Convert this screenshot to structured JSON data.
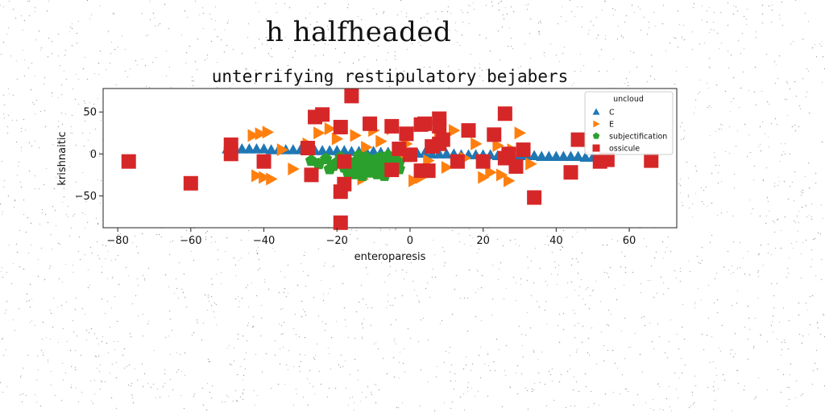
{
  "heading": "h halfheaded",
  "chart_data": {
    "type": "scatter",
    "title": "unterrifying restipulatory bejabers",
    "xlabel": "enteroparesis",
    "ylabel": "krishnaitic",
    "xlim": [
      -84,
      73
    ],
    "ylim": [
      -88,
      78
    ],
    "xticks": [
      -80,
      -60,
      -40,
      -20,
      0,
      20,
      40,
      60
    ],
    "yticks": [
      -50,
      0,
      50
    ],
    "grid": false,
    "legend": {
      "title": "uncloud",
      "placement": "upper right"
    },
    "series": [
      {
        "name": "C",
        "marker": "triangle-up",
        "color": "#1f77b4",
        "points": [
          [
            -50,
            6
          ],
          [
            -48,
            6
          ],
          [
            -46,
            6
          ],
          [
            -44,
            6
          ],
          [
            -42,
            6
          ],
          [
            -40,
            6
          ],
          [
            -38,
            5
          ],
          [
            -36,
            5
          ],
          [
            -34,
            5
          ],
          [
            -32,
            5
          ],
          [
            -30,
            5
          ],
          [
            -28,
            5
          ],
          [
            -26,
            4
          ],
          [
            -24,
            4
          ],
          [
            -22,
            4
          ],
          [
            -20,
            4
          ],
          [
            -18,
            4
          ],
          [
            -16,
            3
          ],
          [
            -14,
            3
          ],
          [
            -12,
            3
          ],
          [
            -10,
            3
          ],
          [
            -8,
            2
          ],
          [
            -6,
            2
          ],
          [
            -4,
            2
          ],
          [
            -2,
            1
          ],
          [
            0,
            1
          ],
          [
            2,
            1
          ],
          [
            4,
            1
          ],
          [
            6,
            0
          ],
          [
            8,
            0
          ],
          [
            10,
            0
          ],
          [
            12,
            0
          ],
          [
            14,
            -1
          ],
          [
            16,
            -1
          ],
          [
            18,
            -1
          ],
          [
            20,
            -1
          ],
          [
            22,
            -1
          ],
          [
            24,
            -2
          ],
          [
            26,
            -2
          ],
          [
            28,
            -2
          ],
          [
            30,
            -2
          ],
          [
            32,
            -2
          ],
          [
            34,
            -2
          ],
          [
            36,
            -3
          ],
          [
            38,
            -3
          ],
          [
            40,
            -3
          ],
          [
            42,
            -3
          ],
          [
            44,
            -3
          ],
          [
            46,
            -3
          ],
          [
            48,
            -4
          ],
          [
            50,
            -4
          ],
          [
            52,
            -4
          ]
        ]
      },
      {
        "name": "E",
        "marker": "triangle-right",
        "color": "#ff7f0e",
        "points": [
          [
            -43,
            22
          ],
          [
            -41,
            24
          ],
          [
            -39,
            26
          ],
          [
            -42,
            -26
          ],
          [
            -40,
            -28
          ],
          [
            -38,
            -30
          ],
          [
            -35,
            5
          ],
          [
            -32,
            -18
          ],
          [
            -28,
            12
          ],
          [
            -25,
            25
          ],
          [
            -22,
            30
          ],
          [
            -20,
            18
          ],
          [
            -18,
            -10
          ],
          [
            -15,
            22
          ],
          [
            -13,
            -30
          ],
          [
            -12,
            8
          ],
          [
            -10,
            28
          ],
          [
            -8,
            15
          ],
          [
            -6,
            -22
          ],
          [
            -5,
            30
          ],
          [
            -3,
            -5
          ],
          [
            -1,
            12
          ],
          [
            1,
            -32
          ],
          [
            3,
            -28
          ],
          [
            5,
            -8
          ],
          [
            8,
            20
          ],
          [
            10,
            -16
          ],
          [
            12,
            28
          ],
          [
            15,
            -5
          ],
          [
            18,
            12
          ],
          [
            20,
            -28
          ],
          [
            22,
            -22
          ],
          [
            24,
            10
          ],
          [
            25,
            -25
          ],
          [
            27,
            -32
          ],
          [
            28,
            5
          ],
          [
            30,
            25
          ],
          [
            33,
            -12
          ]
        ]
      },
      {
        "name": "subjectification",
        "marker": "pentagon",
        "color": "#2ca02c",
        "points": [
          [
            -27,
            -8
          ],
          [
            -25,
            -12
          ],
          [
            -23,
            -6
          ],
          [
            -22,
            -18
          ],
          [
            -20,
            -10
          ],
          [
            -19,
            -4
          ],
          [
            -18,
            -16
          ],
          [
            -17,
            -8
          ],
          [
            -16,
            -20
          ],
          [
            -15,
            -12
          ],
          [
            -14,
            -6
          ],
          [
            -13,
            -18
          ],
          [
            -12,
            -10
          ],
          [
            -11,
            -22
          ],
          [
            -10,
            -14
          ],
          [
            -9,
            -6
          ],
          [
            -8,
            -16
          ],
          [
            -7,
            -10
          ],
          [
            -6,
            -20
          ],
          [
            -5,
            -12
          ],
          [
            -4,
            -8
          ],
          [
            -3,
            -18
          ],
          [
            -14,
            -2
          ],
          [
            -12,
            -4
          ],
          [
            -10,
            -8
          ],
          [
            -8,
            -4
          ],
          [
            -6,
            -2
          ],
          [
            -9,
            -24
          ],
          [
            -11,
            -16
          ],
          [
            -15,
            -24
          ],
          [
            -7,
            -26
          ],
          [
            -21,
            -14
          ],
          [
            -17,
            -22
          ],
          [
            -13,
            -26
          ],
          [
            -5,
            -6
          ],
          [
            -3,
            -10
          ]
        ]
      },
      {
        "name": "ossicule",
        "marker": "square",
        "color": "#d62728",
        "points": [
          [
            -77,
            -9
          ],
          [
            -60,
            -35
          ],
          [
            -49,
            11
          ],
          [
            -49,
            0
          ],
          [
            -40,
            -9
          ],
          [
            -28,
            7
          ],
          [
            -27,
            -25
          ],
          [
            -26,
            44
          ],
          [
            -24,
            47
          ],
          [
            -19,
            -82
          ],
          [
            -19,
            -45
          ],
          [
            -19,
            32
          ],
          [
            -18,
            -36
          ],
          [
            -18,
            -9
          ],
          [
            -16,
            69
          ],
          [
            -11,
            36
          ],
          [
            -5,
            -19
          ],
          [
            -5,
            33
          ],
          [
            -3,
            6
          ],
          [
            -1,
            24
          ],
          [
            0,
            -1
          ],
          [
            3,
            -20
          ],
          [
            3,
            35
          ],
          [
            4,
            36
          ],
          [
            5,
            -20
          ],
          [
            6,
            9
          ],
          [
            8,
            12
          ],
          [
            8,
            42
          ],
          [
            8,
            33
          ],
          [
            9,
            17
          ],
          [
            13,
            -9
          ],
          [
            16,
            28
          ],
          [
            20,
            -9
          ],
          [
            23,
            23
          ],
          [
            26,
            48
          ],
          [
            26,
            -5
          ],
          [
            27,
            0
          ],
          [
            29,
            -15
          ],
          [
            31,
            5
          ],
          [
            34,
            -52
          ],
          [
            44,
            -22
          ],
          [
            46,
            17
          ],
          [
            52,
            -9
          ],
          [
            54,
            -7
          ],
          [
            66,
            -8
          ]
        ]
      }
    ]
  }
}
